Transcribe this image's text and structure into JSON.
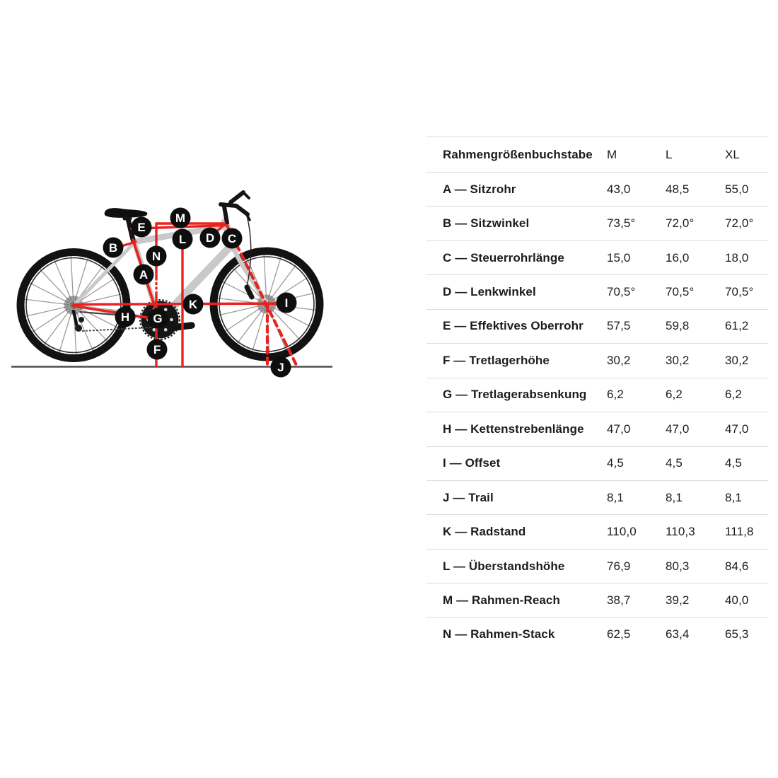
{
  "colors": {
    "accent_red": "#e8231f",
    "frame_gray": "#c9c9c9",
    "marker_black": "#0e0e0e",
    "ground_gray": "#4d4d4d",
    "table_border": "#dcdcdc",
    "text": "#1c1c1c"
  },
  "diagram": {
    "description": "bike-geometry-diagram",
    "markers": [
      {
        "letter": "A"
      },
      {
        "letter": "B"
      },
      {
        "letter": "C"
      },
      {
        "letter": "D"
      },
      {
        "letter": "E"
      },
      {
        "letter": "F"
      },
      {
        "letter": "G"
      },
      {
        "letter": "H"
      },
      {
        "letter": "I"
      },
      {
        "letter": "J"
      },
      {
        "letter": "K"
      },
      {
        "letter": "L"
      },
      {
        "letter": "M"
      },
      {
        "letter": "N"
      }
    ]
  },
  "table": {
    "header": {
      "label": "Rahmengrößenbuchstabe",
      "columns": [
        "M",
        "L",
        "XL"
      ]
    },
    "rows": [
      {
        "label": "A — Sitzrohr",
        "values": [
          "43,0",
          "48,5",
          "55,0"
        ]
      },
      {
        "label": "B — Sitzwinkel",
        "values": [
          "73,5°",
          "72,0°",
          "72,0°"
        ]
      },
      {
        "label": "C — Steuerrohrlänge",
        "values": [
          "15,0",
          "16,0",
          "18,0"
        ]
      },
      {
        "label": "D — Lenkwinkel",
        "values": [
          "70,5°",
          "70,5°",
          "70,5°"
        ]
      },
      {
        "label": "E — Effektives Oberrohr",
        "values": [
          "57,5",
          "59,8",
          "61,2"
        ]
      },
      {
        "label": "F — Tretlagerhöhe",
        "values": [
          "30,2",
          "30,2",
          "30,2"
        ]
      },
      {
        "label": "G — Tretlagerabsenkung",
        "values": [
          "6,2",
          "6,2",
          "6,2"
        ]
      },
      {
        "label": "H — Kettenstrebenlänge",
        "values": [
          "47,0",
          "47,0",
          "47,0"
        ]
      },
      {
        "label": "I — Offset",
        "values": [
          "4,5",
          "4,5",
          "4,5"
        ]
      },
      {
        "label": "J — Trail",
        "values": [
          "8,1",
          "8,1",
          "8,1"
        ]
      },
      {
        "label": "K — Radstand",
        "values": [
          "110,0",
          "110,3",
          "111,8"
        ]
      },
      {
        "label": "L — Überstandshöhe",
        "values": [
          "76,9",
          "80,3",
          "84,6"
        ]
      },
      {
        "label": "M — Rahmen-Reach",
        "values": [
          "38,7",
          "39,2",
          "40,0"
        ]
      },
      {
        "label": "N — Rahmen-Stack",
        "values": [
          "62,5",
          "63,4",
          "65,3"
        ]
      }
    ]
  }
}
